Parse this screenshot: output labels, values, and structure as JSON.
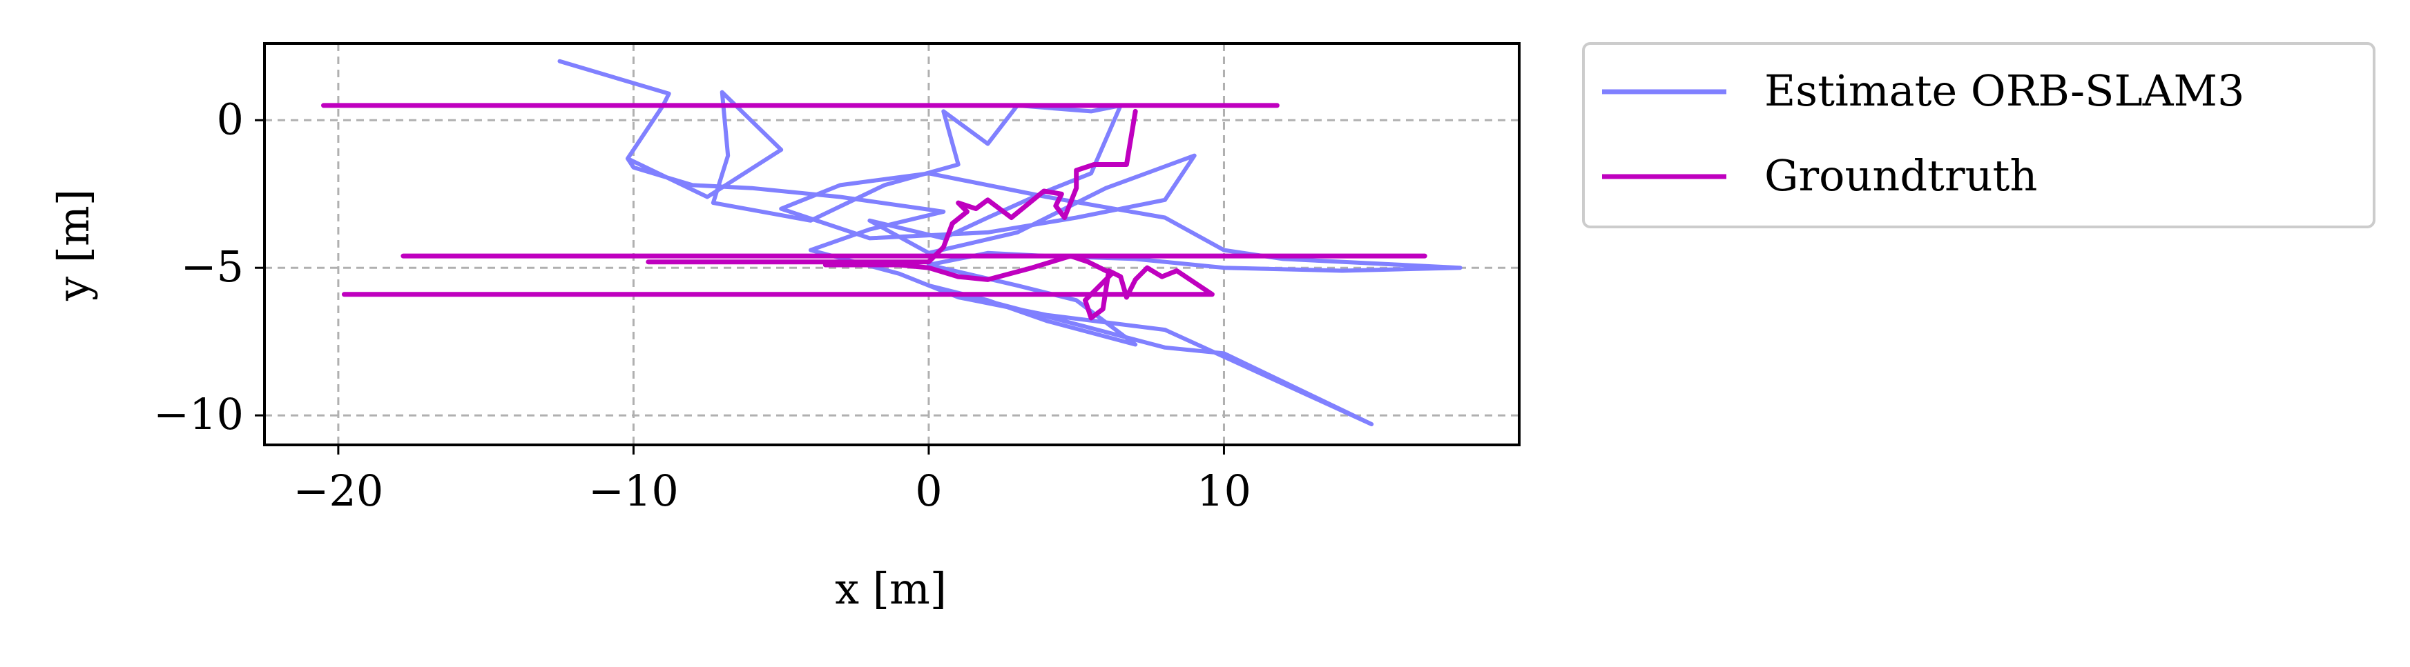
{
  "chart_data": {
    "type": "line",
    "xlabel": "x [m]",
    "ylabel": "y [m]",
    "xlim": [
      -22.5,
      20
    ],
    "ylim": [
      -11,
      2.6
    ],
    "xticks": [
      -20,
      -10,
      0,
      10
    ],
    "xtick_labels": [
      "−20",
      "−10",
      "0",
      "10"
    ],
    "yticks": [
      0,
      -5,
      -10
    ],
    "ytick_labels": [
      "0",
      "−5",
      "−10"
    ],
    "grid": true,
    "legend_position": "outside-right-top",
    "series": [
      {
        "name": "Estimate ORB-SLAM3",
        "color": "#8080ff",
        "x": [
          -12.5,
          -8.8,
          -9.0,
          -10.2,
          -7.5,
          -5.0,
          -7.0,
          -6.8,
          -7.3,
          -4.0,
          -1.5,
          1.0,
          0.5,
          2.0,
          3.0,
          5.5,
          6.5,
          5.5,
          4.0,
          2.0,
          0.5,
          -2.0,
          0.0,
          3.0,
          6.0,
          9.0,
          8.0,
          5.0,
          2.0,
          -2.0,
          -5.0,
          -3.0,
          0.0,
          4.0,
          8.0,
          10.0,
          12.0,
          18.0,
          14.0,
          10.0,
          7.0,
          4.0,
          2.0,
          0.0,
          3.0,
          5.0,
          7.0,
          4.0,
          2.0,
          0.0,
          8.0,
          10.0,
          15.0,
          8.0,
          4.0,
          1.0,
          -1.0,
          -4.0,
          -2.0,
          0.5,
          -3.0,
          -6.0,
          -8.0,
          -9.0,
          -10.0,
          -10.2
        ],
        "y": [
          2.0,
          0.9,
          0.5,
          -1.3,
          -2.6,
          -1.0,
          0.95,
          -1.2,
          -2.8,
          -3.4,
          -2.2,
          -1.5,
          0.3,
          -0.8,
          0.5,
          0.3,
          0.5,
          -1.8,
          -2.4,
          -3.3,
          -4.0,
          -3.4,
          -4.5,
          -3.8,
          -2.3,
          -1.2,
          -2.7,
          -3.3,
          -3.8,
          -4.0,
          -3.0,
          -2.2,
          -1.8,
          -2.6,
          -3.3,
          -4.4,
          -4.7,
          -5.0,
          -5.1,
          -5.0,
          -4.7,
          -4.6,
          -4.5,
          -4.9,
          -5.6,
          -6.1,
          -7.6,
          -6.8,
          -6.1,
          -5.6,
          -7.7,
          -7.9,
          -10.3,
          -7.1,
          -6.6,
          -6.0,
          -5.2,
          -4.4,
          -3.7,
          -3.1,
          -2.6,
          -2.3,
          -2.2,
          -1.9,
          -1.6,
          -1.3
        ]
      },
      {
        "name": "Groundtruth",
        "color": "#bf00bf",
        "x": [
          -20.5,
          11.8,
          null,
          7.0,
          6.7,
          5.6,
          5.0,
          5.0,
          4.6,
          4.3,
          4.5,
          3.9,
          2.8,
          2.0,
          1.6,
          1.0,
          1.3,
          0.8,
          0.5,
          0.0,
          -9.5,
          null,
          -17.8,
          16.8,
          null,
          -19.8,
          9.6,
          9.0,
          8.4,
          7.9,
          7.4,
          7.0,
          6.7,
          6.5,
          6.1,
          5.9,
          5.5,
          5.3,
          5.7,
          6.2,
          5.4,
          4.8,
          3.5,
          2.0,
          1.0,
          0.0,
          -1.0,
          -3.5
        ],
        "y": [
          0.5,
          0.5,
          null,
          0.3,
          -1.5,
          -1.5,
          -1.7,
          -2.3,
          -3.3,
          -2.9,
          -2.5,
          -2.4,
          -3.3,
          -2.7,
          -3.0,
          -2.8,
          -3.1,
          -3.5,
          -4.3,
          -4.8,
          -4.8,
          null,
          -4.6,
          -4.6,
          null,
          -5.9,
          -5.9,
          -5.5,
          -5.1,
          -5.3,
          -5.0,
          -5.4,
          -6.0,
          -5.3,
          -5.1,
          -6.4,
          -6.7,
          -6.1,
          -5.7,
          -5.2,
          -4.8,
          -4.6,
          -5.0,
          -5.4,
          -5.3,
          -5.0,
          -4.9,
          -4.9
        ]
      }
    ]
  }
}
